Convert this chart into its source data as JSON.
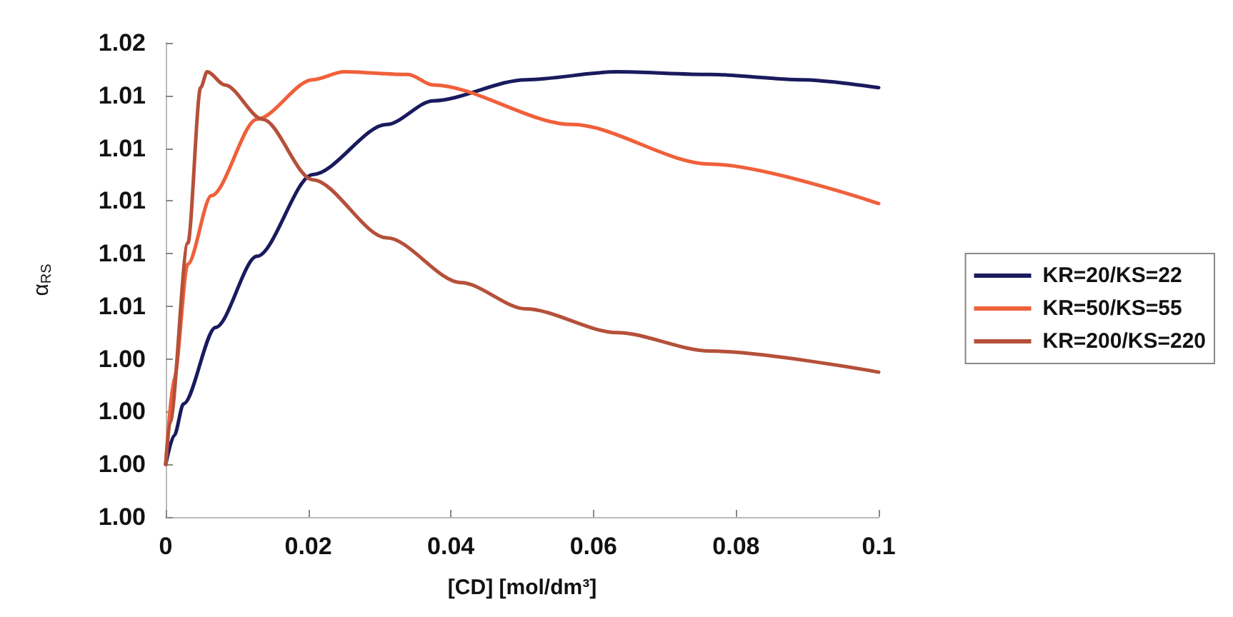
{
  "chart_data": {
    "type": "line",
    "xlabel": "[CD] [mol/dm³]",
    "ylabel": "α$_{RS}$",
    "xlim": [
      0,
      0.1
    ],
    "xticks": [
      0,
      0.02,
      0.04,
      0.06,
      0.08,
      0.1
    ],
    "ylim": [
      0.998,
      1.016
    ],
    "yticks": [
      {
        "value": 0.998,
        "label": "1.00"
      },
      {
        "value": 1.0,
        "label": "1.00"
      },
      {
        "value": 1.002,
        "label": "1.00"
      },
      {
        "value": 1.004,
        "label": "1.00"
      },
      {
        "value": 1.006,
        "label": "1.01"
      },
      {
        "value": 1.008,
        "label": "1.01"
      },
      {
        "value": 1.01,
        "label": "1.01"
      },
      {
        "value": 1.012,
        "label": "1.01"
      },
      {
        "value": 1.014,
        "label": "1.01"
      },
      {
        "value": 1.016,
        "label": "1.02"
      }
    ],
    "grid": false,
    "legend": "right",
    "marker": "none",
    "line_style": "solid",
    "series": [
      {
        "name": "KR=20/KS=22",
        "color": "#1a1a5e",
        "x": [
          0,
          0.0012,
          0.0025,
          0.007,
          0.0128,
          0.0206,
          0.031,
          0.0375,
          0.0505,
          0.0633,
          0.0763,
          0.0893,
          0.1
        ],
        "values": [
          1.0,
          1.0011,
          1.0023,
          1.0052,
          1.0079,
          1.011,
          1.0129,
          1.0138,
          1.0146,
          1.0149,
          1.0148,
          1.0146,
          1.0143
        ]
      },
      {
        "name": "KR=50/KS=55",
        "color": "#f0603a",
        "x": [
          0,
          0.0012,
          0.0031,
          0.0064,
          0.0128,
          0.0206,
          0.025,
          0.034,
          0.0375,
          0.057,
          0.0763,
          0.1
        ],
        "values": [
          1.0,
          1.0033,
          1.0076,
          1.0102,
          1.0131,
          1.0146,
          1.0149,
          1.0148,
          1.0144,
          1.0129,
          1.0114,
          1.0099
        ]
      },
      {
        "name": "KR=200/KS=220",
        "color": "#b5503a",
        "x": [
          0,
          0.0006,
          0.0031,
          0.0049,
          0.0058,
          0.0083,
          0.0136,
          0.0206,
          0.031,
          0.0414,
          0.0505,
          0.0633,
          0.0763,
          0.1
        ],
        "values": [
          1.0,
          1.0016,
          1.0084,
          1.0143,
          1.0149,
          1.0144,
          1.0131,
          1.0108,
          1.0086,
          1.0069,
          1.0059,
          1.005,
          1.0043,
          1.0035
        ]
      }
    ]
  }
}
